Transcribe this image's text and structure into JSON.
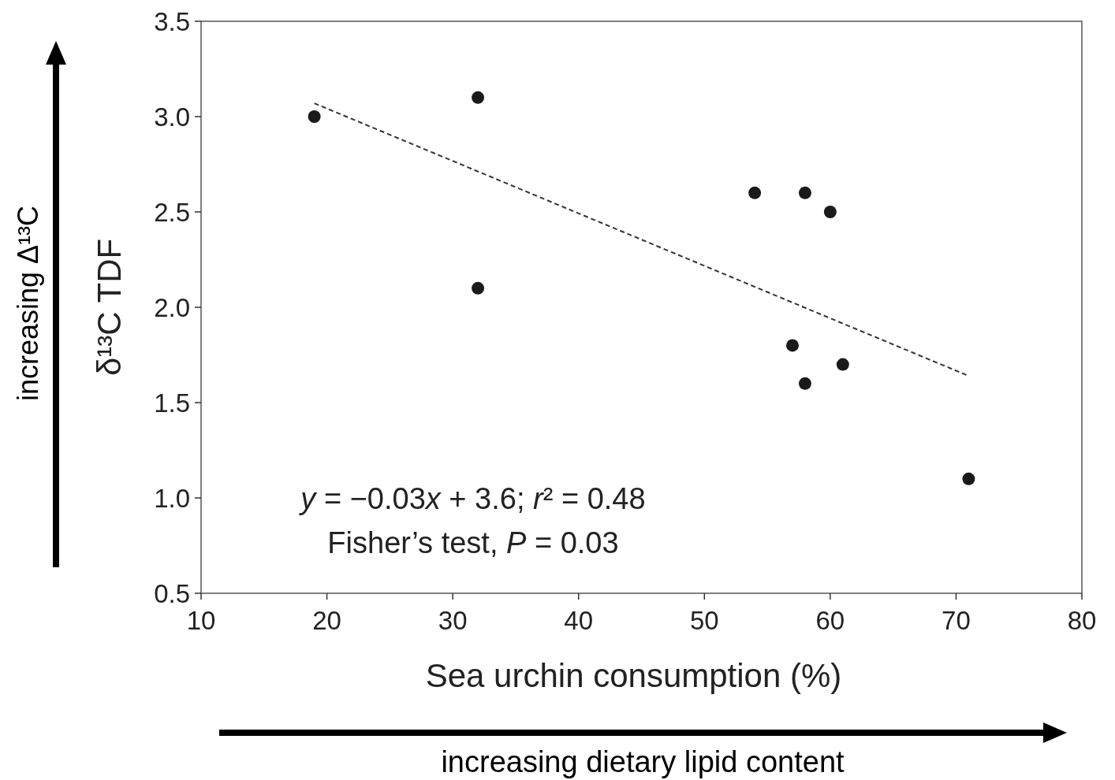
{
  "chart_data": {
    "type": "scatter",
    "xlabel": "Sea urchin consumption (%)",
    "ylabel": "δ¹³C TDF",
    "xlim": [
      10,
      80
    ],
    "xticks": [
      10,
      20,
      30,
      40,
      50,
      60,
      70,
      80
    ],
    "ylim": [
      0.5,
      3.5
    ],
    "yticks": [
      {
        "value": 0.5,
        "label": "0.5"
      },
      {
        "value": 1,
        "label": "1.0"
      },
      {
        "value": 1.5,
        "label": "1.5"
      },
      {
        "value": 2,
        "label": "2.0"
      },
      {
        "value": 2.5,
        "label": "2.5"
      },
      {
        "value": 3,
        "label": "3.0"
      },
      {
        "value": 3.5,
        "label": "3.5"
      }
    ],
    "grid": false,
    "marker": "circle",
    "series": [
      {
        "color": "#1a1a1a",
        "x": [
          19,
          32,
          32,
          54,
          58,
          60,
          57,
          58,
          61,
          71
        ],
        "values": [
          3.0,
          3.1,
          2.1,
          2.6,
          2.6,
          2.5,
          1.8,
          1.6,
          1.7,
          1.1
        ]
      },
      {
        "type": "line",
        "color": "#333333",
        "line_style": "dashed",
        "marker": "none",
        "x": [
          19,
          71
        ],
        "values": [
          3.07,
          1.64
        ]
      }
    ],
    "annotations": [
      "y = −0.03x + 3.6; r² = 0.48",
      "Fisher’s test, P = 0.03",
      "increasing Δ¹³C",
      "increasing dietary lipid content"
    ]
  }
}
